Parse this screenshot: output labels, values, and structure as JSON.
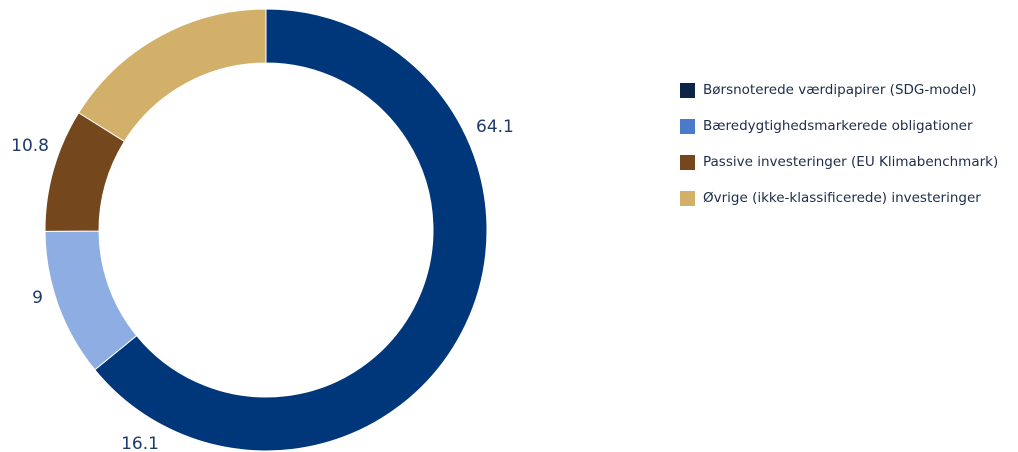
{
  "chart_data": {
    "type": "pie",
    "categories": [
      "Børsnoterede værdipapirer (SDG-model)",
      "Bæredygtighedsmarkerede obligationer",
      "Passive investeringer (EU Klimabenchmark)",
      "Øvrige (ikke-klassificerede) investeringer"
    ],
    "values": [
      64.1,
      10.8,
      9,
      16.1
    ],
    "value_labels": [
      "64.1",
      "10.8",
      "9",
      "16.1"
    ],
    "colors": [
      "#00377a",
      "#8eaee3",
      "#74471d",
      "#d2b06a"
    ],
    "legend_colors": [
      "#0d2647",
      "#4a7bc8",
      "#74471d",
      "#d2b06a"
    ],
    "donut": true,
    "direction": "clockwise",
    "start": "12 o'clock",
    "legend_position": "right",
    "title": ""
  }
}
